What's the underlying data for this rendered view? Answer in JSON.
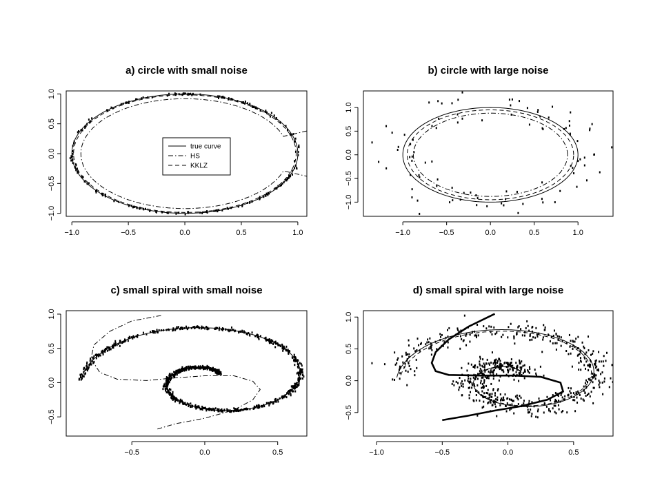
{
  "chart_data": [
    {
      "id": "a",
      "type": "line",
      "title": "a) circle with small noise",
      "xlim": [
        -1.05,
        1.08
      ],
      "ylim": [
        -1.05,
        1.05
      ],
      "xticks": [
        -1.0,
        -0.5,
        0.0,
        0.5,
        1.0
      ],
      "xtick_labels": [
        "−1.0",
        "−0.5",
        "0.0",
        "0.5",
        "1.0"
      ],
      "yticks": [
        -1.0,
        -0.5,
        0.0,
        0.5,
        1.0
      ],
      "ytick_labels": [
        "−1.0",
        "−0.5",
        "0.0",
        "0.5",
        "1.0"
      ],
      "noise_sd": 0.01,
      "n_points": 220,
      "series": [
        {
          "name": "true curve",
          "kind": "circle",
          "dash": "solid",
          "r": 1.0
        },
        {
          "name": "HS",
          "kind": "circle",
          "dash": "dashdot",
          "r": 0.92,
          "ends": [
            [
              1.08,
              0.38
            ],
            [
              1.08,
              -0.38
            ]
          ]
        },
        {
          "name": "KKLZ",
          "kind": "circle",
          "dash": "dashed",
          "r": 0.985
        }
      ],
      "legend": {
        "position": "center",
        "entries": [
          {
            "label": "true curve",
            "dash": "solid"
          },
          {
            "label": "HS",
            "dash": "dashdot"
          },
          {
            "label": "KKLZ",
            "dash": "dashed"
          }
        ]
      }
    },
    {
      "id": "b",
      "type": "line",
      "title": "b) circle with large noise",
      "xlim": [
        -1.45,
        1.4
      ],
      "ylim": [
        -1.3,
        1.35
      ],
      "xticks": [
        -1.0,
        -0.5,
        0.0,
        0.5,
        1.0
      ],
      "xtick_labels": [
        "−1.0",
        "−0.5",
        "0.0",
        "0.5",
        "1.0"
      ],
      "yticks": [
        -1.0,
        -0.5,
        0.0,
        0.5,
        1.0
      ],
      "ytick_labels": [
        "−1.0",
        "−0.5",
        "0.0",
        "0.5",
        "1.0"
      ],
      "noise_sd": 0.18,
      "n_points": 100,
      "series": [
        {
          "name": "true curve",
          "kind": "circle",
          "dash": "solid",
          "r": 1.0
        },
        {
          "name": "HS",
          "kind": "circle",
          "dash": "dashdot",
          "r": 0.88
        },
        {
          "name": "KKLZ",
          "kind": "circle",
          "dash": "dashed",
          "r": 0.95
        }
      ]
    },
    {
      "id": "c",
      "type": "line",
      "title": "c) small spiral with small noise",
      "xlim": [
        -0.95,
        0.7
      ],
      "ylim": [
        -0.78,
        1.05
      ],
      "xticks": [
        -0.5,
        0.0,
        0.5
      ],
      "xtick_labels": [
        "−0.5",
        "0.0",
        "0.5"
      ],
      "yticks": [
        -0.5,
        0.0,
        0.5,
        1.0
      ],
      "ytick_labels": [
        "−0.5",
        "0.0",
        "0.5",
        "1.0"
      ],
      "noise_sd": 0.012,
      "n_points": 900,
      "series": [
        {
          "name": "true curve",
          "kind": "spiral",
          "dash": "solid"
        },
        {
          "name": "HS",
          "kind": "hs_spiral",
          "dash": "dashdot"
        }
      ]
    },
    {
      "id": "d",
      "type": "line",
      "title": "d) small spiral with large noise",
      "xlim": [
        -1.1,
        0.8
      ],
      "ylim": [
        -0.87,
        1.1
      ],
      "xticks": [
        -1.0,
        -0.5,
        0.0,
        0.5
      ],
      "xtick_labels": [
        "−1.0",
        "−0.5",
        "0.0",
        "0.5"
      ],
      "yticks": [
        -0.5,
        0.0,
        0.5,
        1.0
      ],
      "ytick_labels": [
        "−0.5",
        "0.0",
        "0.5",
        "1.0"
      ],
      "noise_sd": 0.08,
      "n_points": 700,
      "series": [
        {
          "name": "true curve",
          "kind": "spiral",
          "dash": "solid"
        },
        {
          "name": "KKLZ",
          "kind": "spiral_scaled",
          "dash": "dashed"
        },
        {
          "name": "HS",
          "kind": "hs_spiral_d",
          "dash": "thick"
        }
      ]
    }
  ]
}
